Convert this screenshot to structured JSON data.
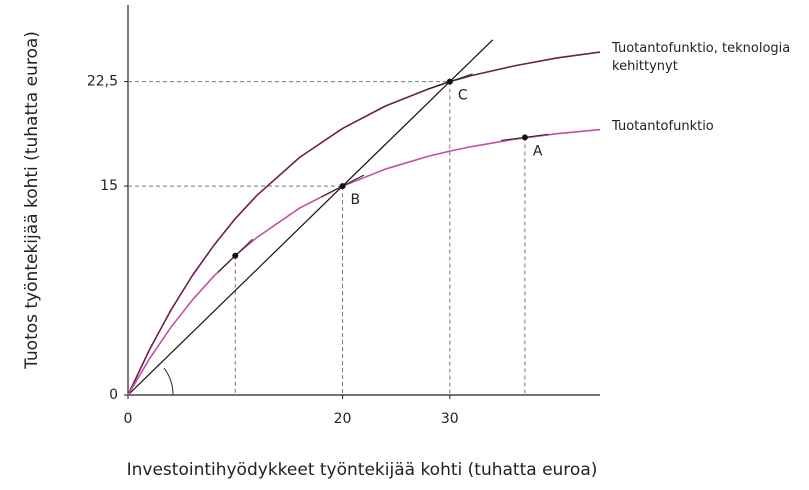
{
  "chart_data": {
    "type": "line",
    "x_label": "Investointihyödykkeet työntekijää kohti (tuhatta euroa)",
    "y_label": "Tuotos työntekijää kohti (tuhatta euroa)",
    "x": [
      0,
      2,
      4,
      6,
      8,
      10,
      12,
      16,
      20,
      24,
      28,
      30,
      32,
      36,
      40,
      44
    ],
    "series": [
      {
        "name": "Tuotantofunktio, teknologia kehittynyt",
        "color": "#6b1f4e",
        "values": [
          0,
          3.25,
          6.09,
          8.58,
          10.74,
          12.66,
          14.32,
          17.06,
          19.14,
          20.75,
          21.97,
          22.5,
          22.93,
          23.63,
          24.2,
          24.62
        ]
      },
      {
        "name": "Tuotantofunktio",
        "color": "#c44fa6",
        "values": [
          0,
          2.6,
          4.86,
          6.82,
          8.53,
          10.01,
          11.3,
          13.42,
          15,
          16.22,
          17.14,
          17.51,
          17.83,
          18.36,
          18.76,
          19.06
        ]
      }
    ],
    "ray": {
      "x": [
        0,
        34
      ],
      "values": [
        0,
        25.5
      ],
      "color": "#111111"
    },
    "points": [
      {
        "label": "A",
        "x": 37,
        "y": 18.5
      },
      {
        "label": "B",
        "x": 20,
        "y": 15
      },
      {
        "label": "C",
        "x": 30,
        "y": 22.5
      },
      {
        "x": 10,
        "y": 10
      }
    ],
    "xlim": [
      0,
      44
    ],
    "ylim": [
      0,
      28
    ],
    "xticks": [
      0,
      20,
      30
    ],
    "yticks": [
      0,
      15,
      {
        "value": 22.5,
        "label": "22,5"
      }
    ]
  }
}
